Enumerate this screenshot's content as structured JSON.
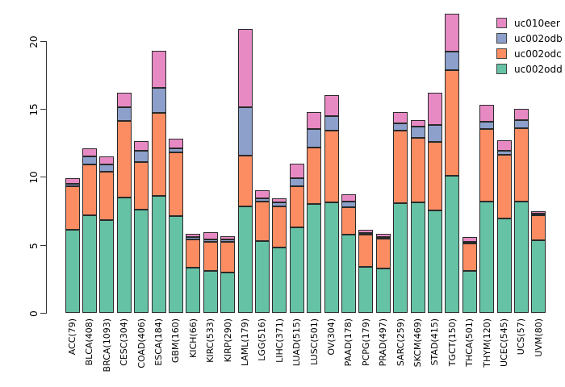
{
  "chart_data": {
    "type": "bar",
    "stacked": true,
    "title": "",
    "xlabel": "",
    "ylabel": "",
    "grid": false,
    "background": "#ffffff",
    "categories": [
      "ACC(79)",
      "BLCA(408)",
      "BRCA(1093)",
      "CESC(304)",
      "COAD(406)",
      "ESCA(184)",
      "GBM(160)",
      "KICH(66)",
      "KIRC(533)",
      "KIRP(290)",
      "LAML(179)",
      "LGG(516)",
      "LIHC(371)",
      "LUAD(515)",
      "LUSC(501)",
      "OV(304)",
      "PAAD(178)",
      "PCPG(179)",
      "PRAD(497)",
      "SARC(259)",
      "SKCM(469)",
      "STAD(415)",
      "TGCT(150)",
      "THCA(501)",
      "THYM(120)",
      "UCEC(545)",
      "UCS(57)",
      "UVM(80)"
    ],
    "series": [
      {
        "name": "uc002odd",
        "color": "#66C2A5",
        "values": [
          6.1,
          7.2,
          6.8,
          8.5,
          7.6,
          8.6,
          7.1,
          3.35,
          3.1,
          2.95,
          7.85,
          5.3,
          4.8,
          6.3,
          8.0,
          8.15,
          5.75,
          3.4,
          3.25,
          8.05,
          8.1,
          7.55,
          10.1,
          3.1,
          8.2,
          6.95,
          8.2,
          5.35
        ]
      },
      {
        "name": "uc002odc",
        "color": "#FC8D62",
        "values": [
          3.2,
          3.7,
          3.6,
          5.6,
          3.5,
          6.1,
          4.7,
          2.05,
          2.1,
          2.25,
          3.7,
          2.9,
          3.05,
          3.0,
          4.15,
          5.25,
          2.05,
          2.35,
          2.2,
          5.35,
          4.8,
          5.0,
          7.75,
          2.0,
          5.3,
          4.65,
          5.4,
          1.8
        ]
      },
      {
        "name": "uc002odb",
        "color": "#8DA0CB",
        "values": [
          0.2,
          0.6,
          0.5,
          1.0,
          0.85,
          1.85,
          0.3,
          0.15,
          0.2,
          0.2,
          3.55,
          0.25,
          0.25,
          0.6,
          1.4,
          1.05,
          0.4,
          0.15,
          0.15,
          0.55,
          0.8,
          1.25,
          1.35,
          0.1,
          0.55,
          0.35,
          0.6,
          0.15
        ]
      },
      {
        "name": "uc010eer",
        "color": "#E78AC3",
        "values": [
          0.4,
          0.6,
          0.6,
          1.1,
          0.7,
          2.7,
          0.7,
          0.25,
          0.55,
          0.25,
          5.8,
          0.55,
          0.3,
          1.05,
          1.2,
          1.55,
          0.55,
          0.2,
          0.2,
          0.8,
          0.5,
          2.4,
          2.8,
          0.35,
          1.25,
          0.75,
          0.8,
          0.2
        ]
      }
    ],
    "y_axis": {
      "ticks": [
        0,
        5,
        10,
        15,
        20
      ],
      "tick_labels": [
        "0",
        "5",
        "10",
        "15",
        "20"
      ],
      "range": [
        0,
        22.6
      ]
    },
    "legend": {
      "position": "top-right",
      "entries": [
        {
          "label": "uc010eer",
          "color": "#E78AC3"
        },
        {
          "label": "uc002odb",
          "color": "#8DA0CB"
        },
        {
          "label": "uc002odc",
          "color": "#FC8D62"
        },
        {
          "label": "uc002odd",
          "color": "#66C2A5"
        }
      ]
    }
  }
}
